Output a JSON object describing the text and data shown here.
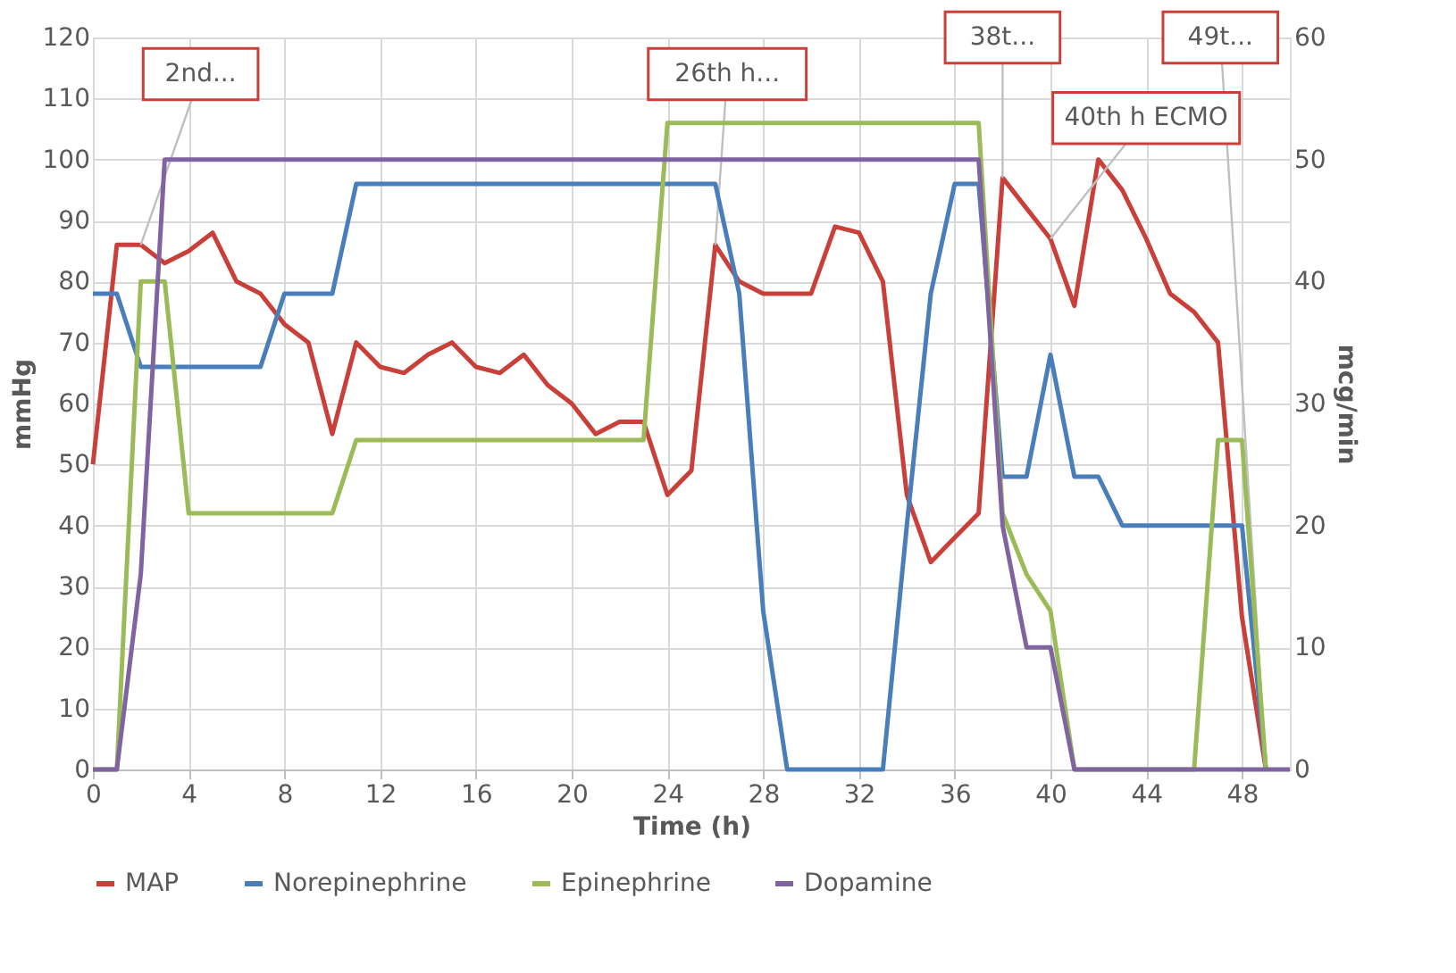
{
  "chart_data": {
    "type": "line",
    "xlabel": "Time (h)",
    "ylabel": "mmHg",
    "y2label": "mcg/min",
    "x": [
      0,
      1,
      2,
      3,
      4,
      5,
      6,
      7,
      8,
      9,
      10,
      11,
      12,
      13,
      14,
      15,
      16,
      17,
      18,
      19,
      20,
      21,
      22,
      23,
      24,
      25,
      26,
      27,
      28,
      29,
      30,
      31,
      32,
      33,
      34,
      35,
      36,
      37,
      38,
      39,
      40,
      41,
      42,
      43,
      44,
      45,
      46,
      47,
      48,
      49,
      50
    ],
    "series": [
      {
        "name": "MAP",
        "color": "#c9403a",
        "values": [
          50,
          86,
          86,
          83,
          85,
          88,
          80,
          78,
          73,
          70,
          55,
          70,
          66,
          65,
          68,
          70,
          66,
          65,
          68,
          63,
          60,
          55,
          57,
          57,
          45,
          49,
          86,
          80,
          78,
          78,
          78,
          89,
          88,
          80,
          45,
          34,
          38,
          42,
          97,
          92,
          87,
          76,
          100,
          95,
          87,
          78,
          75,
          70,
          25,
          0,
          null
        ]
      },
      {
        "name": "Norepinephrine",
        "color": "#4a7ebb",
        "axis": "y2",
        "values": [
          39,
          39,
          33,
          33,
          33,
          33,
          33,
          33,
          39,
          39,
          39,
          48,
          48,
          48,
          48,
          48,
          48,
          48,
          48,
          48,
          48,
          48,
          48,
          48,
          48,
          48,
          48,
          39,
          13,
          0,
          0,
          0,
          0,
          0,
          20,
          39,
          48,
          48,
          24,
          24,
          34,
          24,
          24,
          20,
          20,
          20,
          20,
          20,
          20,
          0,
          null
        ]
      },
      {
        "name": "Epinephrine",
        "color": "#9bbb59",
        "axis": "y2",
        "values": [
          0,
          0,
          40,
          40,
          21,
          21,
          21,
          21,
          21,
          21,
          21,
          27,
          27,
          27,
          27,
          27,
          27,
          27,
          27,
          27,
          27,
          27,
          27,
          27,
          53,
          53,
          53,
          53,
          53,
          53,
          53,
          53,
          53,
          53,
          53,
          53,
          53,
          53,
          21,
          16,
          13,
          0,
          0,
          0,
          0,
          0,
          0,
          27,
          27,
          0,
          null
        ]
      },
      {
        "name": "Dopamine",
        "color": "#8064a2",
        "axis": "y2",
        "values": [
          0,
          0,
          16,
          50,
          50,
          50,
          50,
          50,
          50,
          50,
          50,
          50,
          50,
          50,
          50,
          50,
          50,
          50,
          50,
          50,
          50,
          50,
          50,
          50,
          50,
          50,
          50,
          50,
          50,
          50,
          50,
          50,
          50,
          50,
          50,
          50,
          50,
          50,
          20,
          10,
          10,
          0,
          0,
          0,
          0,
          0,
          0,
          0,
          0,
          0,
          0
        ]
      }
    ],
    "xlim": [
      0,
      50
    ],
    "xticks": [
      0,
      4,
      8,
      12,
      16,
      20,
      24,
      28,
      32,
      36,
      40,
      44,
      48
    ],
    "ylim": [
      0,
      120
    ],
    "yticks": [
      0,
      10,
      20,
      30,
      40,
      50,
      60,
      70,
      80,
      90,
      100,
      110,
      120
    ],
    "y2lim": [
      0,
      60
    ],
    "y2ticks": [
      0,
      10,
      20,
      30,
      40,
      50,
      60
    ],
    "annotations": [
      {
        "text": "2nd...",
        "x": 2,
        "y": 86
      },
      {
        "text": "26th h...",
        "x": 26,
        "y": 86
      },
      {
        "text": "38t...",
        "x": 38,
        "y": 97
      },
      {
        "text": "40th h ECMO",
        "x": 40,
        "y": 87
      },
      {
        "text": "49t...",
        "x": 49,
        "y": 0
      }
    ],
    "grid": true,
    "legend": "bottom",
    "line_style": "solid",
    "marker": "none"
  }
}
